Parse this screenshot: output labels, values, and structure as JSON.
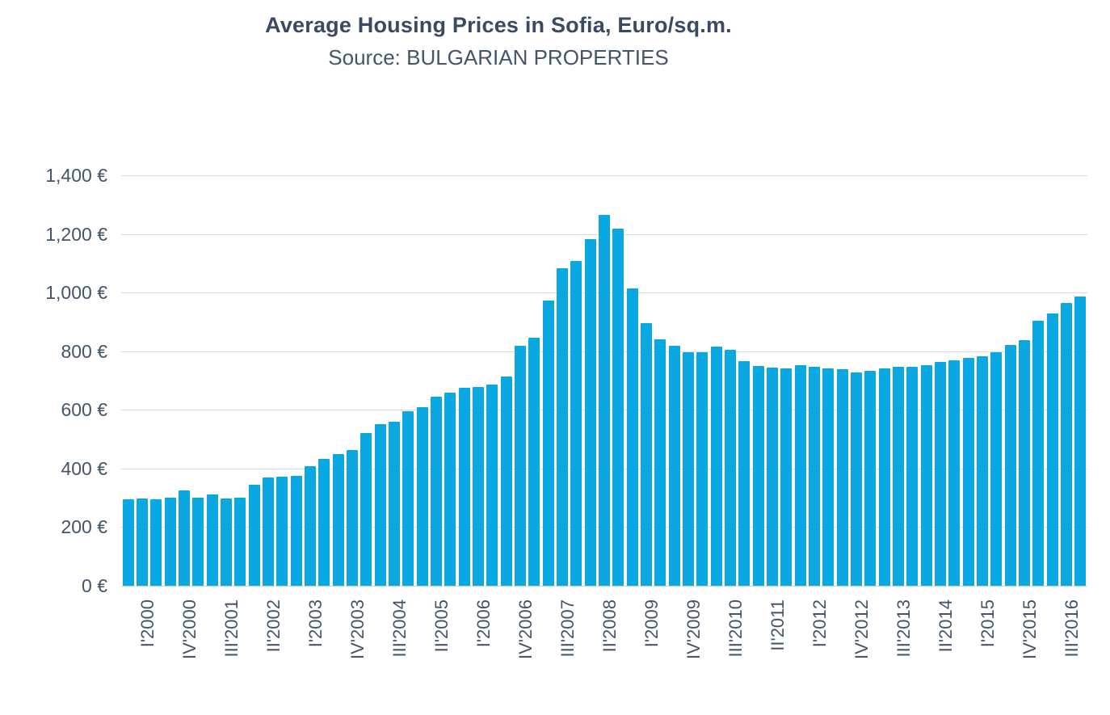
{
  "header": {
    "title": "Average Housing Prices in Sofia, Euro/sq.m.",
    "subtitle": "Source: BULGARIAN PROPERTIES"
  },
  "colors": {
    "bar": "#09a8e1",
    "title_text": "#3b4a63",
    "axis_text": "#44546a",
    "gridline": "#d9d9d9",
    "background": "#ffffff"
  },
  "chart_data": {
    "type": "bar",
    "title": "Average Housing Prices in Sofia, Euro/sq.m.",
    "subtitle": "Source: BULGARIAN PROPERTIES",
    "unit": "€/sq.m.",
    "ylim": [
      0,
      1400
    ],
    "grid": true,
    "legend": false,
    "x_tick_every": 3,
    "y_ticks": [
      {
        "value": 0,
        "label": "0 €"
      },
      {
        "value": 200,
        "label": "200 €"
      },
      {
        "value": 400,
        "label": "400 €"
      },
      {
        "value": 600,
        "label": "600 €"
      },
      {
        "value": 800,
        "label": "800 €"
      },
      {
        "value": 1000,
        "label": "1,000 €"
      },
      {
        "value": 1200,
        "label": "1,200 €"
      },
      {
        "value": 1400,
        "label": "1,400 €"
      }
    ],
    "x_tick_labels_shown": [
      "I'2000",
      "IV'2000",
      "III'2001",
      "II'2002",
      "I'2003",
      "IV'2003",
      "III'2004",
      "II'2005",
      "I'2006",
      "IV'2006",
      "III'2007",
      "II'2008",
      "I'2009",
      "IV'2009",
      "III'2010",
      "II'2011",
      "I'2012",
      "IV'2012",
      "III'2013",
      "II'2014",
      "I'2015",
      "IV'2015",
      "III'2016"
    ],
    "categories": [
      "I'2000",
      "II'2000",
      "III'2000",
      "IV'2000",
      "I'2001",
      "II'2001",
      "III'2001",
      "IV'2001",
      "I'2002",
      "II'2002",
      "III'2002",
      "IV'2002",
      "I'2003",
      "II'2003",
      "III'2003",
      "IV'2003",
      "I'2004",
      "II'2004",
      "III'2004",
      "IV'2004",
      "I'2005",
      "II'2005",
      "III'2005",
      "IV'2005",
      "I'2006",
      "II'2006",
      "III'2006",
      "IV'2006",
      "I'2007",
      "II'2007",
      "III'2007",
      "IV'2007",
      "I'2008",
      "II'2008",
      "III'2008",
      "IV'2008",
      "I'2009",
      "II'2009",
      "III'2009",
      "IV'2009",
      "I'2010",
      "II'2010",
      "III'2010",
      "IV'2010",
      "I'2011",
      "II'2011",
      "III'2011",
      "IV'2011",
      "I'2012",
      "II'2012",
      "III'2012",
      "IV'2012",
      "I'2013",
      "II'2013",
      "III'2013",
      "IV'2013",
      "I'2014",
      "II'2014",
      "III'2014",
      "IV'2014",
      "I'2015",
      "II'2015",
      "III'2015",
      "IV'2015",
      "I'2016",
      "II'2016",
      "III'2016",
      "IV'2016",
      "I'2017"
    ],
    "values": [
      296,
      297,
      294,
      300,
      324,
      301,
      311,
      298,
      300,
      344,
      369,
      372,
      375,
      407,
      434,
      450,
      464,
      521,
      550,
      560,
      596,
      610,
      645,
      659,
      675,
      678,
      687,
      715,
      818,
      845,
      973,
      1083,
      1107,
      1183,
      1264,
      1218,
      1013,
      896,
      841,
      818,
      797,
      797,
      815,
      804,
      766,
      750,
      745,
      741,
      752,
      747,
      741,
      738,
      728,
      733,
      741,
      747,
      747,
      753,
      764,
      770,
      776,
      783,
      797,
      820,
      838,
      903,
      930,
      965,
      986
    ]
  },
  "layout_note": "quarterly average housing prices, Sofia, bar chart"
}
